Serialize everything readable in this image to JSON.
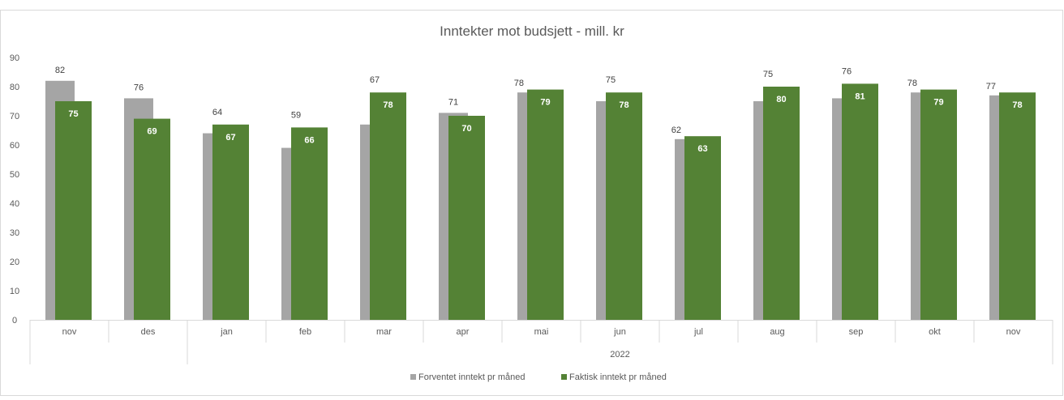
{
  "chart_data": {
    "type": "bar",
    "title": "Inntekter mot budsjett - mill. kr",
    "categories": [
      "nov",
      "des",
      "jan",
      "feb",
      "mar",
      "apr",
      "mai",
      "jun",
      "jul",
      "aug",
      "sep",
      "okt",
      "nov"
    ],
    "group_label": "2022",
    "group_start_index": 2,
    "ylim": [
      0,
      90
    ],
    "yticks": [
      0,
      10,
      20,
      30,
      40,
      50,
      60,
      70,
      80,
      90
    ],
    "xlabel": "",
    "ylabel": "",
    "grid": false,
    "legend_position": "bottom",
    "series": [
      {
        "name": "Forventet inntekt pr måned",
        "color": "#a5a5a5",
        "labels_visible": true,
        "values": [
          82,
          76,
          64,
          59,
          67,
          71,
          78,
          75,
          62,
          75,
          76,
          78,
          77
        ]
      },
      {
        "name": "Faktisk inntekt pr måned",
        "color": "#548235",
        "labels_visible": true,
        "values": [
          75,
          69,
          67,
          66,
          78,
          70,
          79,
          78,
          63,
          80,
          81,
          79,
          78
        ]
      }
    ]
  }
}
